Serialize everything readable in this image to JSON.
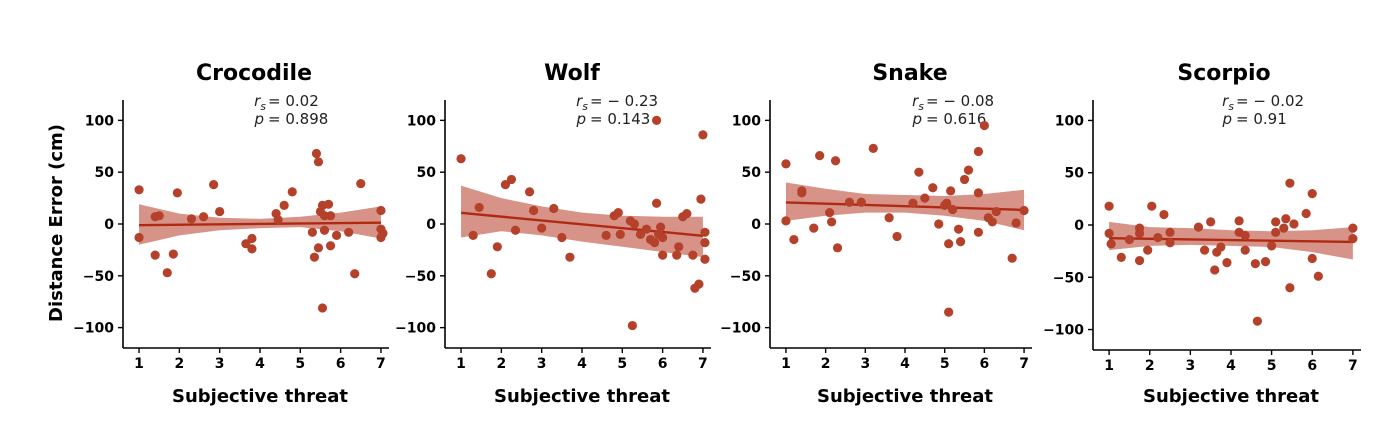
{
  "colors": {
    "point": "#b5412b",
    "line": "#b02a13",
    "band": "#c86a5a"
  },
  "y_axis_label": "Distance Error (cm)",
  "chart_data": [
    {
      "type": "scatter",
      "title": "Crocodile",
      "xlabel": "Subjective threat",
      "ylabel": "Distance Error (cm)",
      "stat_r": "= 0.02",
      "stat_p": "= 0.898",
      "xlim": [
        0.85,
        7.2
      ],
      "ylim": [
        -110,
        110
      ],
      "xticks": [
        1,
        2,
        3,
        4,
        5,
        6,
        7
      ],
      "yticks": [
        -100,
        -50,
        0,
        50,
        100
      ],
      "regression": {
        "intercept": -1.5,
        "slope": 0.4
      },
      "ci_upper": [
        [
          1,
          19
        ],
        [
          2,
          10
        ],
        [
          3,
          6
        ],
        [
          4,
          5
        ],
        [
          5,
          7
        ],
        [
          6,
          11
        ],
        [
          7,
          17
        ]
      ],
      "ci_lower": [
        [
          1,
          -20
        ],
        [
          2,
          -11
        ],
        [
          3,
          -6
        ],
        [
          4,
          -4
        ],
        [
          5,
          -3
        ],
        [
          6,
          -7
        ],
        [
          7,
          -14
        ]
      ],
      "points": [
        [
          1.0,
          33
        ],
        [
          1.0,
          -13
        ],
        [
          1.4,
          7
        ],
        [
          1.4,
          -30
        ],
        [
          1.5,
          8
        ],
        [
          1.7,
          -47
        ],
        [
          1.85,
          -29
        ],
        [
          1.95,
          30
        ],
        [
          2.3,
          5
        ],
        [
          2.6,
          7
        ],
        [
          2.85,
          38
        ],
        [
          3.0,
          12
        ],
        [
          3.65,
          -19
        ],
        [
          3.8,
          -24
        ],
        [
          3.8,
          -14
        ],
        [
          4.4,
          10
        ],
        [
          4.45,
          4
        ],
        [
          4.6,
          18
        ],
        [
          4.8,
          31
        ],
        [
          5.3,
          -8
        ],
        [
          5.35,
          -32
        ],
        [
          5.4,
          68
        ],
        [
          5.45,
          60
        ],
        [
          5.45,
          -23
        ],
        [
          5.5,
          12
        ],
        [
          5.55,
          18
        ],
        [
          5.55,
          -81
        ],
        [
          5.6,
          -6
        ],
        [
          5.6,
          8
        ],
        [
          5.7,
          19
        ],
        [
          5.75,
          8
        ],
        [
          5.75,
          -21
        ],
        [
          5.9,
          -11
        ],
        [
          6.2,
          -8
        ],
        [
          6.35,
          -48
        ],
        [
          6.5,
          39
        ],
        [
          7.0,
          13
        ],
        [
          7.0,
          -5
        ],
        [
          7.0,
          -13
        ],
        [
          7.05,
          -9
        ]
      ]
    },
    {
      "type": "scatter",
      "title": "Wolf",
      "xlabel": "Subjective threat",
      "ylabel": "",
      "stat_r": "= − 0.23",
      "stat_p": "= 0.143",
      "xlim": [
        0.85,
        7.2
      ],
      "ylim": [
        -110,
        110
      ],
      "xticks": [
        1,
        2,
        3,
        4,
        5,
        6,
        7
      ],
      "yticks": [
        -100,
        -50,
        0,
        50,
        100
      ],
      "regression": {
        "intercept": 14.5,
        "slope": -3.7
      },
      "ci_upper": [
        [
          1,
          37
        ],
        [
          2,
          25
        ],
        [
          3,
          17
        ],
        [
          4,
          11
        ],
        [
          5,
          8
        ],
        [
          6,
          7
        ],
        [
          7,
          7
        ]
      ],
      "ci_lower": [
        [
          1,
          -13
        ],
        [
          2,
          -7
        ],
        [
          3,
          -11
        ],
        [
          4,
          -17
        ],
        [
          5,
          -22
        ],
        [
          6,
          -27
        ],
        [
          7,
          -32
        ]
      ],
      "points": [
        [
          1.0,
          63
        ],
        [
          1.3,
          -11
        ],
        [
          1.45,
          16
        ],
        [
          1.75,
          -48
        ],
        [
          1.9,
          -22
        ],
        [
          2.1,
          38
        ],
        [
          2.25,
          43
        ],
        [
          2.35,
          -6
        ],
        [
          2.7,
          31
        ],
        [
          2.8,
          13
        ],
        [
          3.0,
          -4
        ],
        [
          3.3,
          15
        ],
        [
          3.5,
          -13
        ],
        [
          3.7,
          -32
        ],
        [
          4.6,
          -11
        ],
        [
          4.8,
          8
        ],
        [
          4.9,
          11
        ],
        [
          4.95,
          -10
        ],
        [
          5.2,
          3
        ],
        [
          5.25,
          -98
        ],
        [
          5.3,
          0
        ],
        [
          5.45,
          -10
        ],
        [
          5.6,
          -5
        ],
        [
          5.7,
          -15
        ],
        [
          5.8,
          -18
        ],
        [
          5.85,
          100
        ],
        [
          5.85,
          20
        ],
        [
          5.9,
          -10
        ],
        [
          5.95,
          -3
        ],
        [
          6.0,
          -30
        ],
        [
          6.0,
          -13
        ],
        [
          6.35,
          -30
        ],
        [
          6.4,
          -22
        ],
        [
          6.5,
          7
        ],
        [
          6.6,
          10
        ],
        [
          6.75,
          -30
        ],
        [
          6.8,
          -62
        ],
        [
          6.9,
          -58
        ],
        [
          6.95,
          24
        ],
        [
          7.0,
          86
        ],
        [
          7.05,
          -8
        ],
        [
          7.05,
          -18
        ],
        [
          7.05,
          -34
        ]
      ]
    },
    {
      "type": "scatter",
      "title": "Snake",
      "xlabel": "Subjective threat",
      "ylabel": "",
      "stat_r": "= − 0.08",
      "stat_p": "= 0.616",
      "xlim": [
        0.85,
        7.2
      ],
      "ylim": [
        -110,
        110
      ],
      "xticks": [
        1,
        2,
        3,
        4,
        5,
        6,
        7
      ],
      "yticks": [
        -100,
        -50,
        0,
        50,
        100
      ],
      "regression": {
        "intercept": 22,
        "slope": -1.2
      },
      "ci_upper": [
        [
          1,
          40
        ],
        [
          2,
          34
        ],
        [
          3,
          29
        ],
        [
          4,
          28
        ],
        [
          5,
          27
        ],
        [
          6,
          29
        ],
        [
          7,
          33
        ]
      ],
      "ci_lower": [
        [
          1,
          3
        ],
        [
          2,
          8
        ],
        [
          3,
          11
        ],
        [
          4,
          11
        ],
        [
          5,
          8
        ],
        [
          6,
          3
        ],
        [
          7,
          -6
        ]
      ],
      "points": [
        [
          1.0,
          58
        ],
        [
          1.0,
          3
        ],
        [
          1.2,
          -15
        ],
        [
          1.4,
          32
        ],
        [
          1.4,
          30
        ],
        [
          1.7,
          -4
        ],
        [
          1.85,
          66
        ],
        [
          2.1,
          11
        ],
        [
          2.15,
          2
        ],
        [
          2.25,
          61
        ],
        [
          2.3,
          -23
        ],
        [
          2.6,
          21
        ],
        [
          2.9,
          21
        ],
        [
          3.2,
          73
        ],
        [
          3.6,
          6
        ],
        [
          3.8,
          -12
        ],
        [
          4.2,
          20
        ],
        [
          4.35,
          50
        ],
        [
          4.5,
          25
        ],
        [
          4.7,
          35
        ],
        [
          4.85,
          0
        ],
        [
          5.0,
          18
        ],
        [
          5.05,
          20
        ],
        [
          5.1,
          -19
        ],
        [
          5.1,
          -85
        ],
        [
          5.15,
          32
        ],
        [
          5.2,
          14
        ],
        [
          5.35,
          -5
        ],
        [
          5.4,
          -17
        ],
        [
          5.5,
          43
        ],
        [
          5.6,
          52
        ],
        [
          5.85,
          30
        ],
        [
          5.85,
          70
        ],
        [
          5.85,
          -8
        ],
        [
          6.0,
          95
        ],
        [
          6.1,
          6
        ],
        [
          6.2,
          2
        ],
        [
          6.3,
          12
        ],
        [
          6.7,
          -33
        ],
        [
          6.8,
          1
        ],
        [
          7.0,
          13
        ]
      ]
    },
    {
      "type": "scatter",
      "title": "Scorpio",
      "xlabel": "Subjective threat",
      "ylabel": "",
      "stat_r": "= − 0.02",
      "stat_p": "= 0.91",
      "xlim": [
        0.85,
        7.2
      ],
      "ylim": [
        -110,
        110
      ],
      "xticks": [
        1,
        2,
        3,
        4,
        5,
        6,
        7
      ],
      "yticks": [
        -100,
        -50,
        0,
        50,
        100
      ],
      "regression": {
        "intercept": -12,
        "slope": -0.6
      },
      "ci_upper": [
        [
          1,
          3
        ],
        [
          2,
          -2
        ],
        [
          3,
          -3
        ],
        [
          4,
          -5
        ],
        [
          5,
          -6
        ],
        [
          6,
          -5
        ],
        [
          7,
          -2
        ]
      ],
      "ci_lower": [
        [
          1,
          -24
        ],
        [
          2,
          -20
        ],
        [
          3,
          -19
        ],
        [
          4,
          -20
        ],
        [
          5,
          -21
        ],
        [
          6,
          -26
        ],
        [
          7,
          -33
        ]
      ],
      "points": [
        [
          1.0,
          18
        ],
        [
          1.0,
          -8
        ],
        [
          1.05,
          -18
        ],
        [
          1.3,
          -31
        ],
        [
          1.5,
          -14
        ],
        [
          1.75,
          -3
        ],
        [
          1.75,
          -8
        ],
        [
          1.75,
          -34
        ],
        [
          1.95,
          -24
        ],
        [
          2.05,
          18
        ],
        [
          2.2,
          -12
        ],
        [
          2.35,
          10
        ],
        [
          2.5,
          -7
        ],
        [
          2.5,
          -17
        ],
        [
          3.2,
          -2
        ],
        [
          3.35,
          -24
        ],
        [
          3.5,
          3
        ],
        [
          3.6,
          -43
        ],
        [
          3.65,
          -26
        ],
        [
          3.75,
          -21
        ],
        [
          3.9,
          -36
        ],
        [
          4.2,
          -7
        ],
        [
          4.2,
          4
        ],
        [
          4.35,
          -10
        ],
        [
          4.35,
          -24
        ],
        [
          4.6,
          -37
        ],
        [
          4.65,
          -92
        ],
        [
          4.85,
          -35
        ],
        [
          5.0,
          -20
        ],
        [
          5.1,
          -7
        ],
        [
          5.1,
          3
        ],
        [
          5.3,
          -3
        ],
        [
          5.35,
          6
        ],
        [
          5.45,
          40
        ],
        [
          5.45,
          -60
        ],
        [
          5.55,
          1
        ],
        [
          5.85,
          11
        ],
        [
          6.0,
          30
        ],
        [
          6.0,
          -32
        ],
        [
          6.15,
          -49
        ],
        [
          7.0,
          -3
        ],
        [
          7.0,
          -13
        ]
      ]
    }
  ]
}
